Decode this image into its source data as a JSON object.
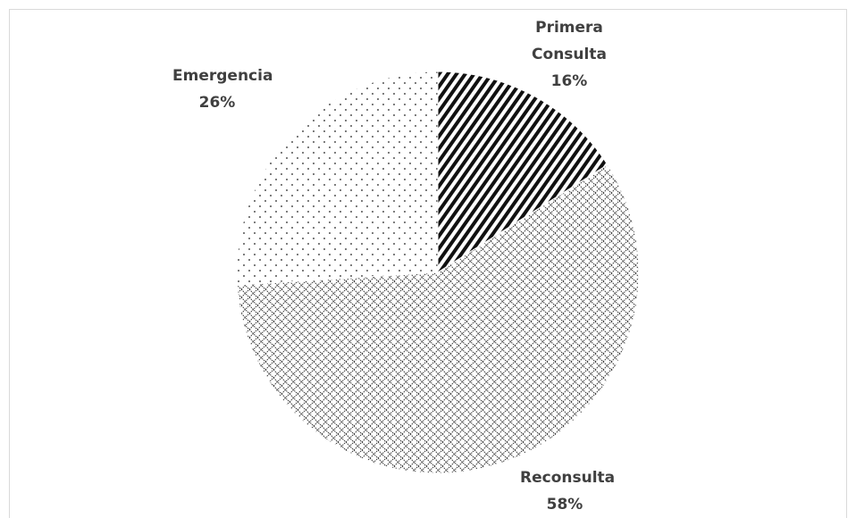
{
  "chart_data": {
    "type": "pie",
    "categories": [
      "Primera Consulta",
      "Reconsulta",
      "Emergencia"
    ],
    "values": [
      16,
      58,
      26
    ],
    "value_labels": [
      "16%",
      "58%",
      "26%"
    ]
  }
}
